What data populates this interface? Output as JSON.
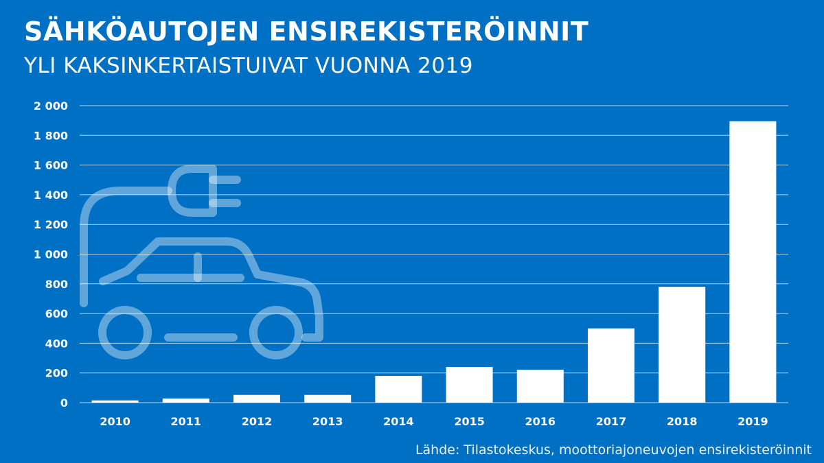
{
  "title": "SÄHKÖAUTOJEN ENSIREKISTERÖINNIT",
  "subtitle": "YLI KAKSINKERTAISTUIVAT VUONNA 2019",
  "source": "Lähde: Tilastokeskus, moottoriajoneuvojen ensirekisteröinnit",
  "illustration_icon": "electric-car-plug-icon",
  "colors": {
    "background": "#0070c4",
    "bars": "#ffffff",
    "gridlines": "#ffffff"
  },
  "chart_data": {
    "type": "bar",
    "categories": [
      "2010",
      "2011",
      "2012",
      "2013",
      "2014",
      "2015",
      "2016",
      "2017",
      "2018",
      "2019"
    ],
    "values": [
      15,
      28,
      52,
      52,
      180,
      240,
      222,
      500,
      780,
      1895
    ],
    "ylim": [
      0,
      2000
    ],
    "yticks": [
      0,
      200,
      400,
      600,
      800,
      1000,
      1200,
      1400,
      1600,
      1800,
      2000
    ],
    "ytick_labels": [
      "0",
      "200",
      "400",
      "600",
      "800",
      "1 000",
      "1 200",
      "1 400",
      "1 600",
      "1 800",
      "2 000"
    ],
    "grid": true,
    "legend": "none"
  }
}
